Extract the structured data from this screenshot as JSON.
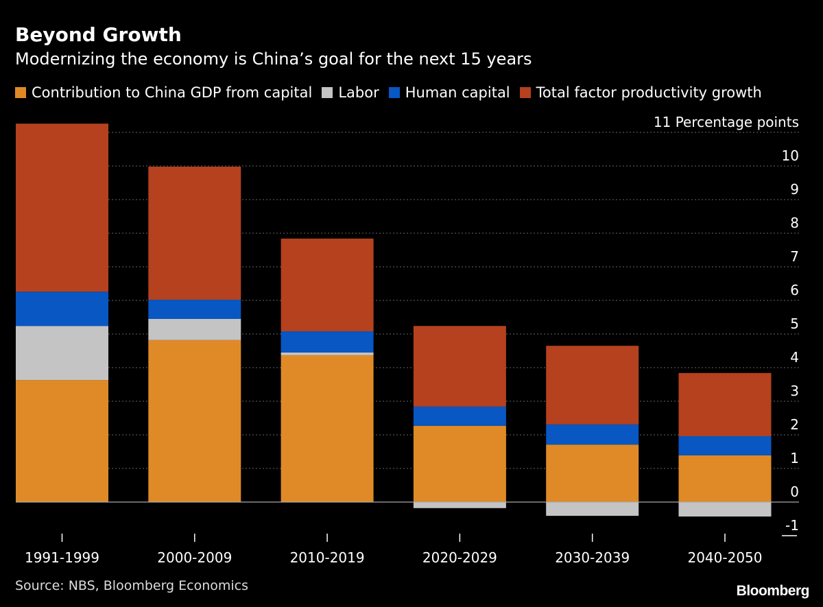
{
  "header": {
    "title": "Beyond Growth",
    "subtitle": "Modernizing the economy is China’s goal for the next 15 years"
  },
  "footer": {
    "source": "Source: NBS, Bloomberg Economics",
    "logo": "Bloomberg"
  },
  "chart_data": {
    "type": "bar",
    "stacked": true,
    "title": "Beyond Growth",
    "subtitle": "Modernizing the economy is China’s goal for the next 15 years",
    "ylabel": "Percentage points",
    "ylim": [
      -1,
      11
    ],
    "yticks": [
      -1,
      0,
      1,
      2,
      3,
      4,
      5,
      6,
      7,
      8,
      9,
      10,
      11
    ],
    "y_axis_side": "right",
    "grid": true,
    "legend_position": "top",
    "categories": [
      "1991-1999",
      "2000-2009",
      "2010-2019",
      "2020-2029",
      "2030-2039",
      "2040-2050"
    ],
    "series": [
      {
        "name": "Contribution to China GDP from capital",
        "color": "#df8a27",
        "values": [
          3.63,
          4.82,
          4.37,
          2.27,
          1.71,
          1.39
        ]
      },
      {
        "name": "Labor",
        "color": "#c4c4c4",
        "values": [
          1.61,
          0.63,
          0.08,
          -0.18,
          -0.41,
          -0.43
        ]
      },
      {
        "name": "Human capital",
        "color": "#0857c3",
        "values": [
          1.02,
          0.57,
          0.63,
          0.57,
          0.6,
          0.57
        ]
      },
      {
        "name": "Total factor productivity growth",
        "color": "#b5411e",
        "values": [
          5.0,
          3.96,
          2.76,
          2.4,
          2.34,
          1.88
        ]
      }
    ]
  }
}
